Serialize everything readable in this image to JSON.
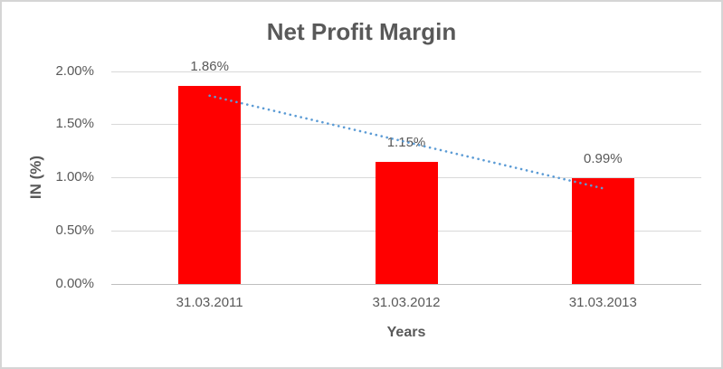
{
  "chart_data": {
    "type": "bar",
    "title": "Net Profit Margin",
    "xlabel": "Years",
    "ylabel": "IN (%)",
    "categories": [
      "31.03.2011",
      "31.03.2012",
      "31.03.2013"
    ],
    "series": [
      {
        "name": "Net Profit Margin",
        "values": [
          1.86,
          1.15,
          0.99
        ]
      }
    ],
    "data_labels": [
      "1.86%",
      "1.15%",
      "0.99%"
    ],
    "ytick_labels": [
      "0.00%",
      "0.50%",
      "1.00%",
      "1.50%",
      "2.00%"
    ],
    "ylim": [
      0,
      2.0
    ],
    "grid": true,
    "legend_position": "none",
    "bar_color": "#ff0000",
    "trendline": {
      "type": "linear",
      "style": "dotted",
      "color": "#5b9bd5",
      "start_value": 1.768,
      "end_value": 0.898
    },
    "text_color": "#595959",
    "gridline_color": "#d9d9d9"
  }
}
